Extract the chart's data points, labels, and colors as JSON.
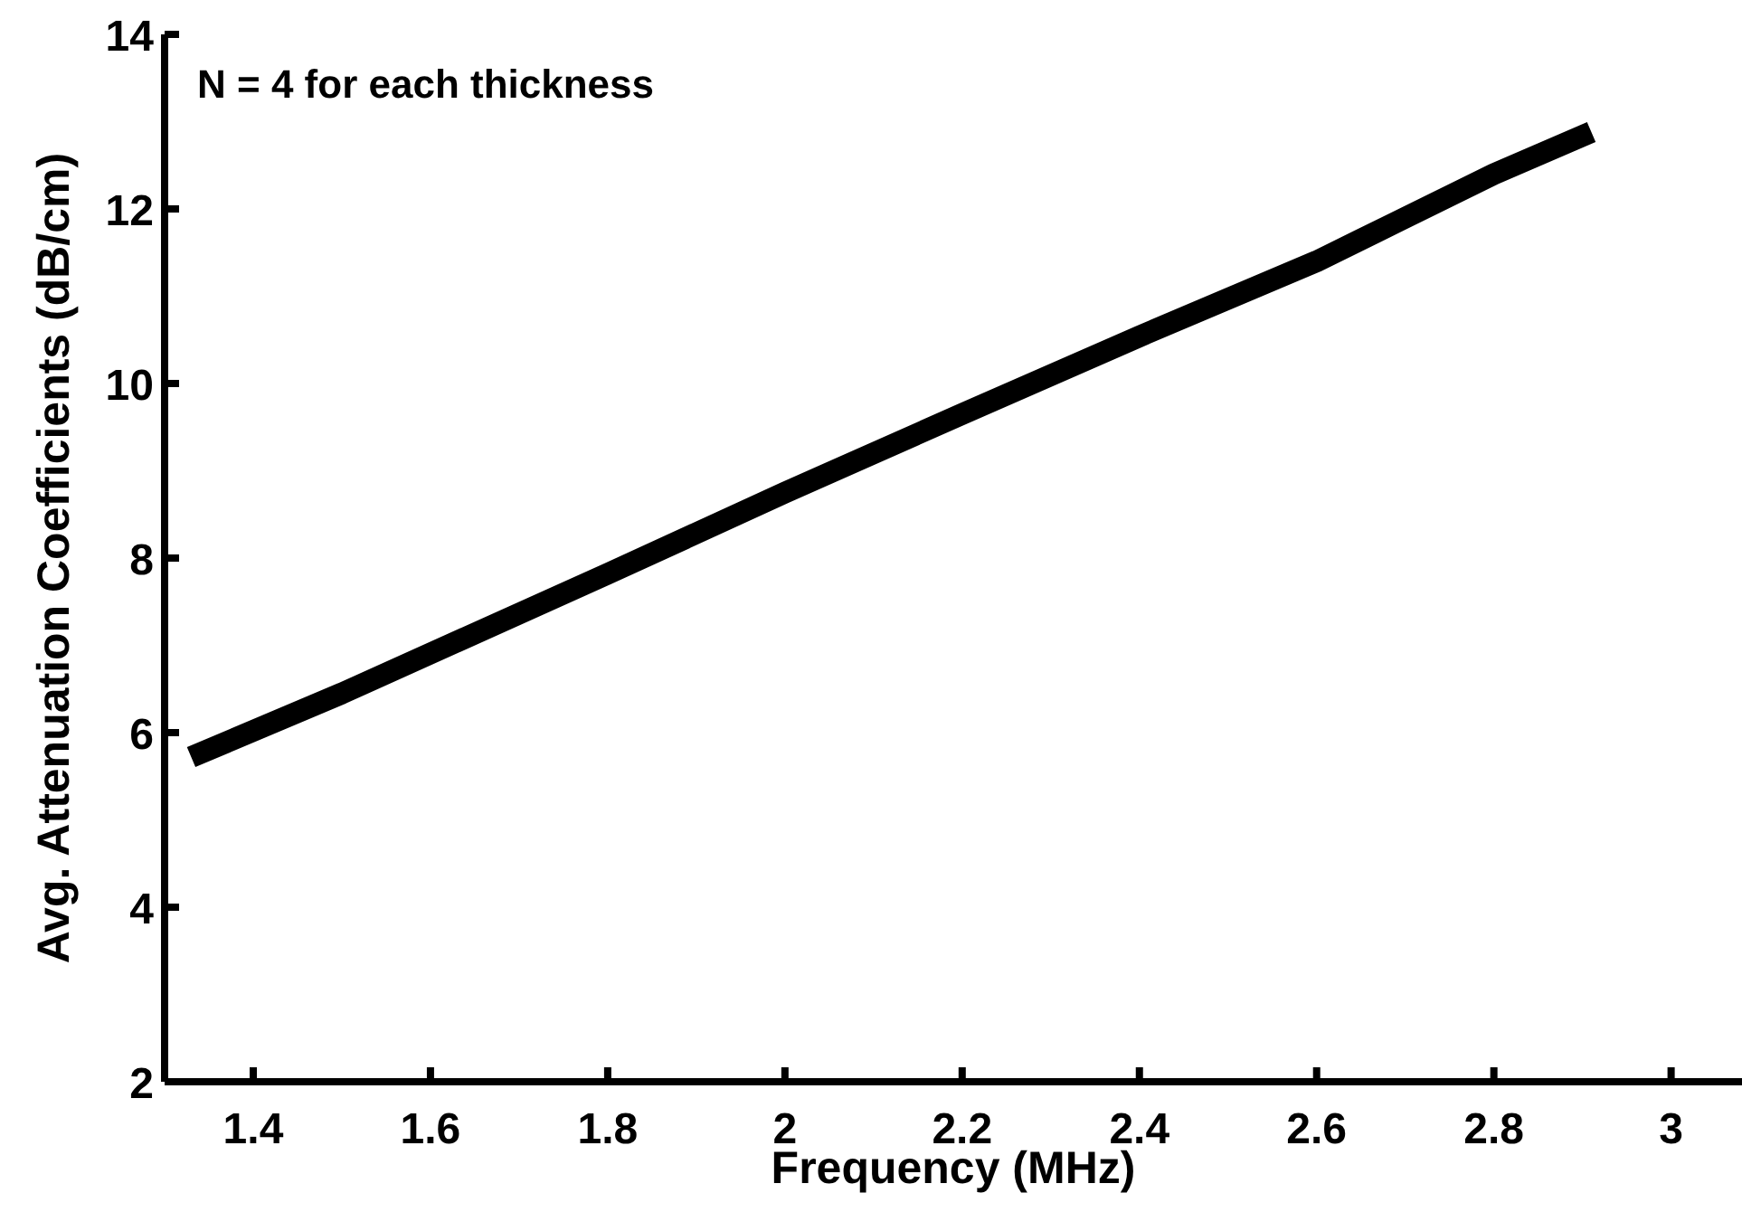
{
  "chart_data": {
    "type": "line",
    "xlabel": "Frequency (MHz)",
    "ylabel": "Avg. Attenuation Coefficients (dB/cm)",
    "annotations": [
      "N = 4 for each thickness"
    ],
    "x": [
      1.33,
      1.5,
      1.8,
      2.0,
      2.2,
      2.4,
      2.6,
      2.8,
      2.91
    ],
    "series": [
      {
        "color": "#000000",
        "values": [
          5.72,
          6.45,
          7.82,
          8.75,
          9.65,
          10.54,
          11.4,
          12.4,
          12.88
        ]
      }
    ],
    "xlim": [
      1.3,
      3.08
    ],
    "xticks": [
      1.4,
      1.6,
      1.8,
      2,
      2.2,
      2.4,
      2.6,
      2.8,
      3
    ],
    "ylim": [
      2,
      14
    ],
    "yticks": [
      2,
      4,
      6,
      8,
      10,
      12,
      14
    ],
    "grid": false,
    "line_style": "solid"
  }
}
